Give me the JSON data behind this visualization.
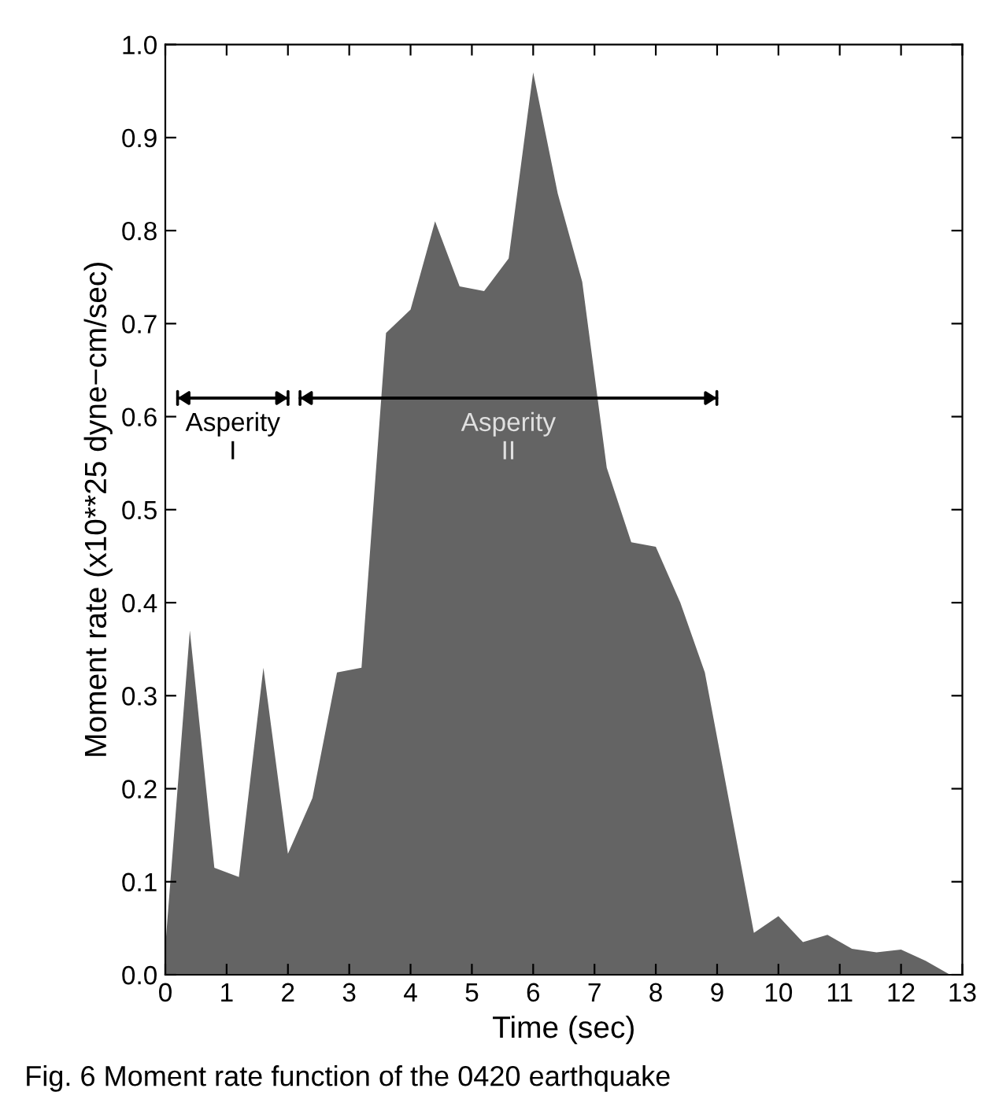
{
  "chart_data": {
    "type": "area",
    "xlabel": "Time (sec)",
    "ylabel": "Moment rate (x10**25 dyne−cm/sec)",
    "x": [
      0,
      0.4,
      0.8,
      1.2,
      1.6,
      2.0,
      2.4,
      2.8,
      3.2,
      3.6,
      4.0,
      4.4,
      4.8,
      5.2,
      5.6,
      6.0,
      6.4,
      6.8,
      7.2,
      7.6,
      8.0,
      8.4,
      8.8,
      9.6,
      10.0,
      10.4,
      10.8,
      11.2,
      11.6,
      12.0,
      12.4,
      12.8
    ],
    "series": [
      {
        "color": "#646464",
        "values": [
          0.03,
          0.37,
          0.115,
          0.105,
          0.33,
          0.13,
          0.19,
          0.325,
          0.33,
          0.69,
          0.715,
          0.81,
          0.74,
          0.735,
          0.77,
          0.97,
          0.84,
          0.745,
          0.545,
          0.465,
          0.46,
          0.4,
          0.325,
          0.045,
          0.063,
          0.035,
          0.043,
          0.028,
          0.024,
          0.027,
          0.015,
          0.0
        ]
      }
    ],
    "xlim": [
      0,
      13
    ],
    "xticks": [
      0,
      1,
      2,
      3,
      4,
      5,
      6,
      7,
      8,
      9,
      10,
      11,
      12,
      13
    ],
    "ylim": [
      0,
      1.0
    ],
    "yticks": [
      {
        "value": 0,
        "label": "0.0"
      },
      0.1,
      0.2,
      0.3,
      0.4,
      0.5,
      0.6,
      0.7,
      0.8,
      0.9,
      {
        "value": 1.0,
        "label": "1.0"
      }
    ],
    "annotations": [
      "Asperity\nI",
      "Asperity\nII",
      "Fig. 6 Moment rate function of the 0420 earthquake"
    ]
  }
}
